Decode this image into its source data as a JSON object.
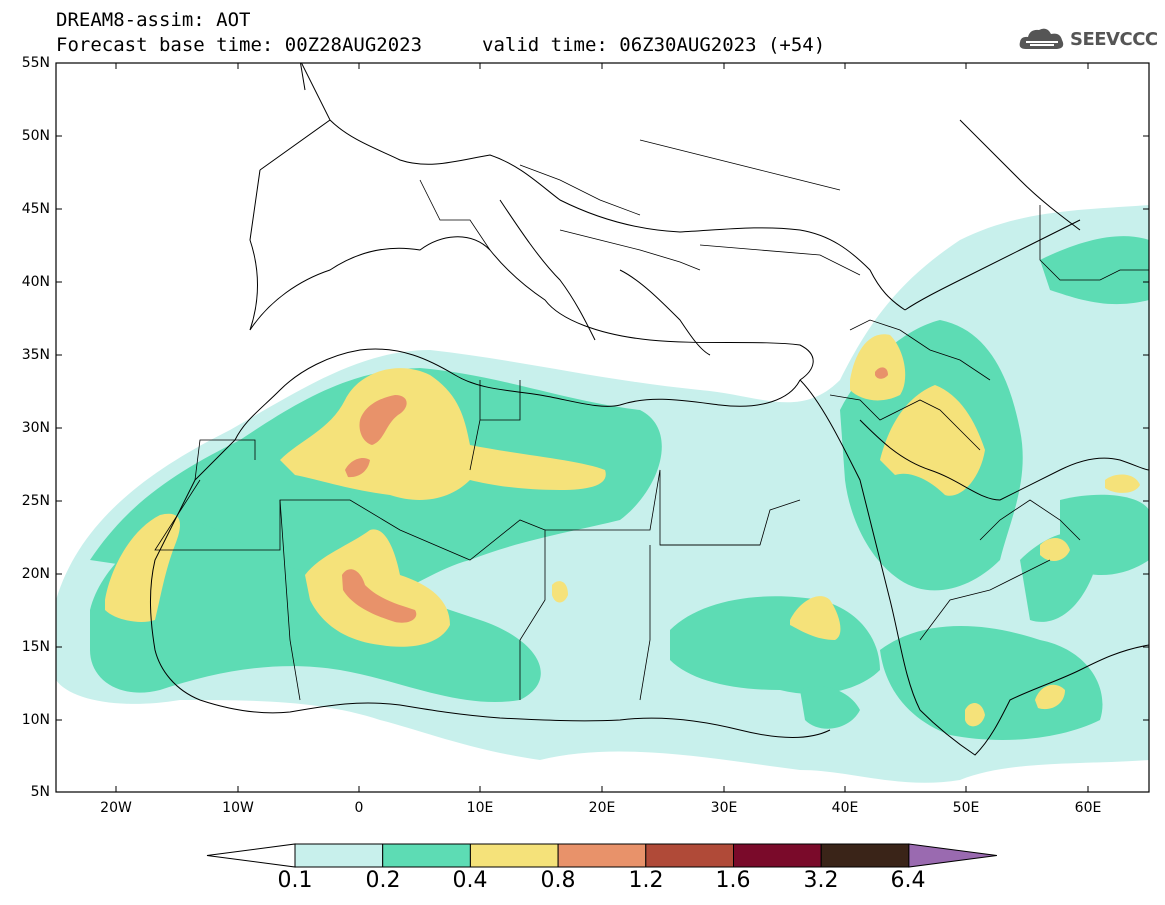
{
  "header": {
    "title": "DREAM8-assim: AOT",
    "base_time": "Forecast base time: 00Z28AUG2023",
    "valid_time": "valid time: 06Z30AUG2023 (+54)"
  },
  "logo": {
    "text": "SEEVCCC",
    "icon": "cloud-logo-icon"
  },
  "map": {
    "lat_labels": [
      "55N",
      "50N",
      "45N",
      "40N",
      "35N",
      "30N",
      "25N",
      "20N",
      "15N",
      "10N",
      "5N"
    ],
    "lon_labels": [
      "20W",
      "10W",
      "0",
      "10E",
      "20E",
      "30E",
      "40E",
      "50E",
      "60E"
    ],
    "lat_range": [
      5,
      55
    ],
    "lon_range": [
      -25,
      65
    ]
  },
  "colorbar": {
    "labels": [
      "0.1",
      "0.2",
      "0.4",
      "0.8",
      "1.2",
      "1.6",
      "3.2",
      "6.4"
    ],
    "colors": [
      "#c8f0ec",
      "#5ddcb4",
      "#f5e27a",
      "#e8926a",
      "#b04a38",
      "#7a0a2a",
      "#3a2418",
      "#9a6ab0"
    ]
  }
}
